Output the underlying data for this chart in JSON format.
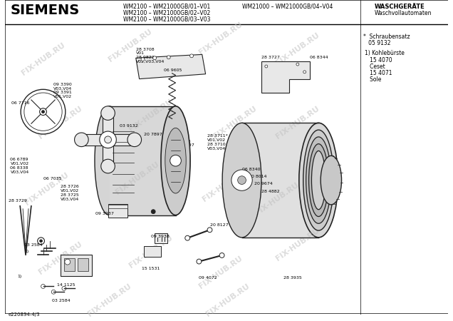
{
  "title_brand": "SIEMENS",
  "header_left1": "WM2100 – WM21000GB/01–V01",
  "header_left2": "WM2100 – WM21000GB/02–V02",
  "header_left3": "WM2100 – WM21000GB/03–V03",
  "header_right1": "WM21000 – WM21000GB/04–V04",
  "header_cat1": "WASCHGERÄTE",
  "header_cat2": "Waschvollautomaten",
  "footnote": "e220894-4/3",
  "sidebar_note1": "*  Schraubensatz",
  "sidebar_note2": "   05 9132",
  "sidebar_note3": "1) Kohlebürste",
  "sidebar_note4": "   15 4070",
  "sidebar_note5": "   Ceset",
  "sidebar_note6": "   15 4071",
  "sidebar_note7": "   Sole",
  "bg_color": "#ffffff",
  "line_color": "#000000",
  "text_color": "#000000",
  "diagram_color": "#222222",
  "part_fill": "#e8e8e8",
  "watermark": "FIX-HUB.RU"
}
